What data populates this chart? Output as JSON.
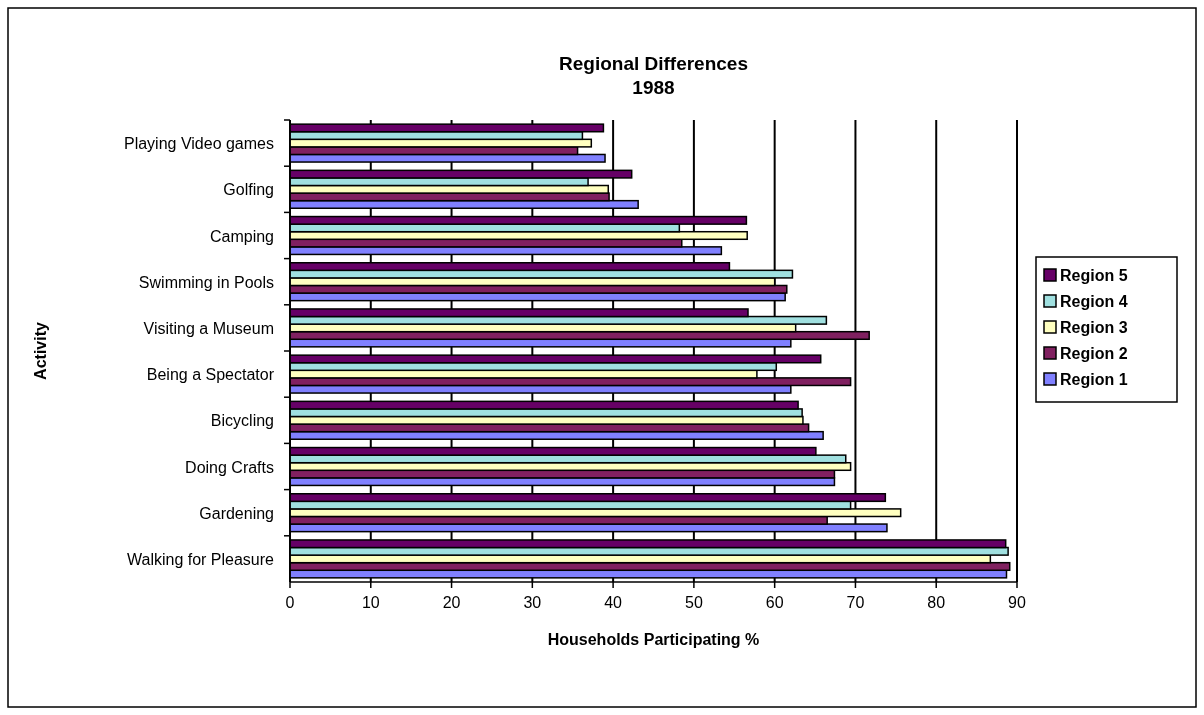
{
  "chart_data": {
    "type": "bar",
    "orientation": "horizontal",
    "title": "Regional Differences",
    "subtitle": "1988",
    "xlabel": "Households Participating %",
    "ylabel": "Activity",
    "categories": [
      "Playing Video games",
      "Golfing",
      "Camping",
      "Swimming in Pools",
      "Visiting a Museum",
      "Being a Spectator",
      "Bicycling",
      "Doing Crafts",
      "Gardening",
      "Walking for Pleasure"
    ],
    "series": [
      {
        "name": "Region 1",
        "color": "#8080ff",
        "values": [
          39.0,
          43.1,
          53.4,
          61.3,
          62.0,
          62.0,
          66.0,
          67.4,
          73.9,
          88.7
        ]
      },
      {
        "name": "Region 2",
        "color": "#802060",
        "values": [
          35.6,
          39.5,
          48.5,
          61.5,
          71.7,
          69.4,
          64.2,
          67.4,
          66.5,
          89.1
        ]
      },
      {
        "name": "Region 3",
        "color": "#ffffc0",
        "values": [
          37.3,
          39.4,
          56.6,
          60.0,
          62.6,
          57.8,
          63.5,
          69.4,
          75.6,
          86.7
        ]
      },
      {
        "name": "Region 4",
        "color": "#a0e0e0",
        "values": [
          36.2,
          36.9,
          48.2,
          62.2,
          66.4,
          60.2,
          63.4,
          68.8,
          69.4,
          88.9
        ]
      },
      {
        "name": "Region 5",
        "color": "#660066",
        "values": [
          38.8,
          42.3,
          56.5,
          54.4,
          56.7,
          65.7,
          62.9,
          65.1,
          73.7,
          88.6
        ]
      }
    ],
    "xlim": [
      0,
      90
    ],
    "xticks": [
      0,
      10,
      20,
      30,
      40,
      50,
      60,
      70,
      80,
      90
    ],
    "grid": "x",
    "legend": "right"
  }
}
